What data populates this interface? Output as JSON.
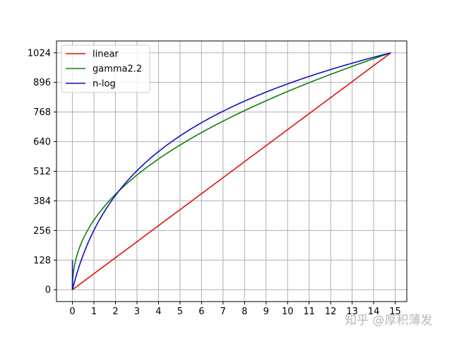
{
  "chart_data": {
    "type": "line",
    "title": "",
    "xlabel": "",
    "ylabel": "",
    "xlim": [
      -0.74,
      15.54
    ],
    "ylim": [
      -51.2,
      1075.2
    ],
    "xticks": [
      0,
      1,
      2,
      3,
      4,
      5,
      6,
      7,
      8,
      9,
      10,
      11,
      12,
      13,
      14,
      15
    ],
    "yticks": [
      0,
      128,
      256,
      384,
      512,
      640,
      768,
      896,
      1024
    ],
    "grid": true,
    "legend_position": "top-left",
    "x_max": 14.8,
    "series": [
      {
        "name": "linear",
        "color": "#e01010",
        "function": "linear"
      },
      {
        "name": "gamma2.2",
        "color": "#108010",
        "function": "gamma",
        "gamma": 2.2
      },
      {
        "name": "n-log",
        "color": "#1010c0",
        "function": "log"
      }
    ]
  },
  "watermark": "知乎 @厚积薄发"
}
